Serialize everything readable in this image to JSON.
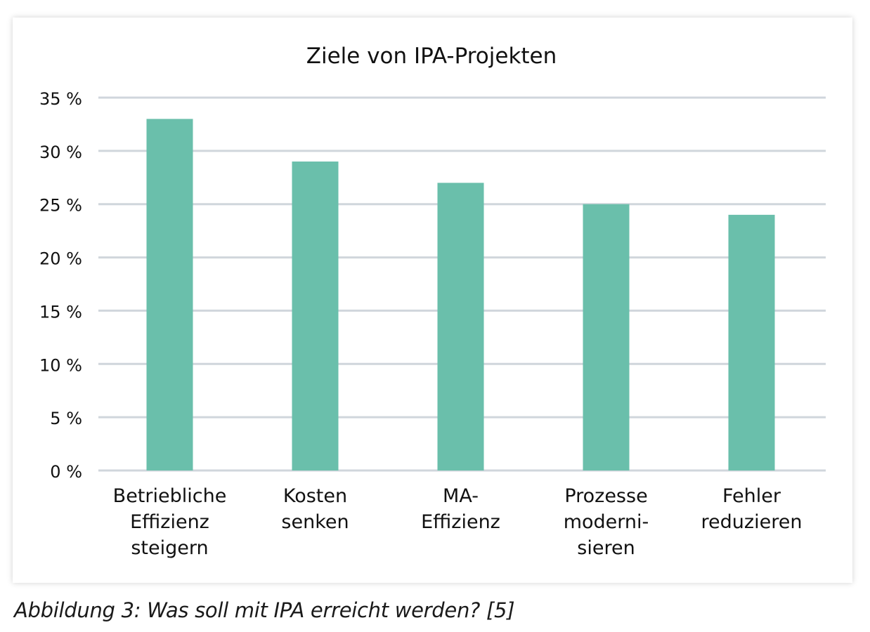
{
  "chart_data": {
    "type": "bar",
    "title": "Ziele von IPA-Projekten",
    "categories": [
      [
        "Betriebliche",
        "Effizienz",
        "steigern"
      ],
      [
        "Kosten",
        "senken"
      ],
      [
        "MA-",
        "Effizienz"
      ],
      [
        "Prozesse",
        "moderni-",
        "sieren"
      ],
      [
        "Fehler",
        "reduzieren"
      ]
    ],
    "values": [
      33,
      29,
      27,
      25,
      24
    ],
    "unit": "%",
    "ylim": [
      0,
      35
    ],
    "yticks": [
      0,
      5,
      10,
      15,
      20,
      25,
      30,
      35
    ],
    "ytick_labels": [
      "0 %",
      "5 %",
      "10 %",
      "15 %",
      "20 %",
      "25 %",
      "30 %",
      "35 %"
    ],
    "xlabel": "",
    "ylabel": "",
    "grid": true,
    "bar_color": "#6abfab",
    "grid_color": "#d0d6dc"
  },
  "caption": "Abbildung 3: Was soll mit IPA erreicht werden? [5]"
}
